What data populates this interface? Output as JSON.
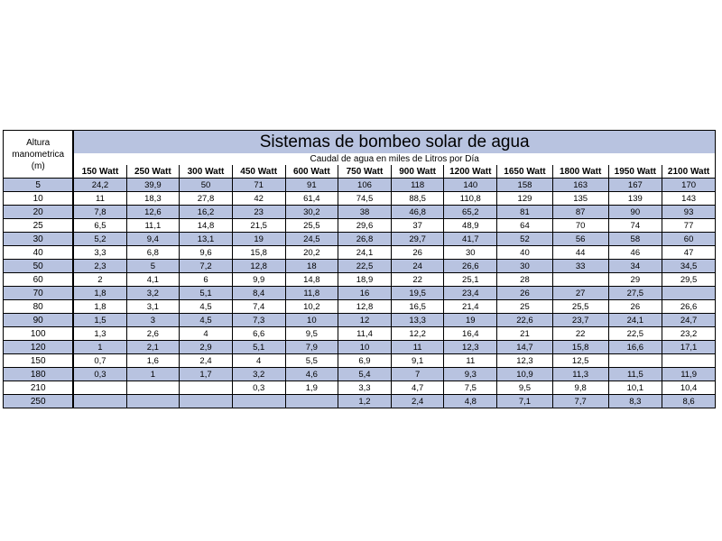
{
  "altitude_header": [
    "Altura",
    "manometrica",
    "(m)"
  ],
  "title": "Sistemas de bombeo solar de agua",
  "subtitle": "Caudal de agua en miles de Litros por Día",
  "columns": [
    "150 Watt",
    "250 Watt",
    "300 Watt",
    "450 Watt",
    "600 Watt",
    "750 Watt",
    "900 Watt",
    "1200 Watt",
    "1650 Watt",
    "1800 Watt",
    "1950 Watt",
    "2100 Watt"
  ],
  "rows": [
    {
      "altura": "5",
      "values": [
        "24,2",
        "39,9",
        "50",
        "71",
        "91",
        "106",
        "118",
        "140",
        "158",
        "163",
        "167",
        "170"
      ]
    },
    {
      "altura": "10",
      "values": [
        "11",
        "18,3",
        "27,8",
        "42",
        "61,4",
        "74,5",
        "88,5",
        "110,8",
        "129",
        "135",
        "139",
        "143"
      ]
    },
    {
      "altura": "20",
      "values": [
        "7,8",
        "12,6",
        "16,2",
        "23",
        "30,2",
        "38",
        "46,8",
        "65,2",
        "81",
        "87",
        "90",
        "93"
      ]
    },
    {
      "altura": "25",
      "values": [
        "6,5",
        "11,1",
        "14,8",
        "21,5",
        "25,5",
        "29,6",
        "37",
        "48,9",
        "64",
        "70",
        "74",
        "77"
      ]
    },
    {
      "altura": "30",
      "values": [
        "5,2",
        "9,4",
        "13,1",
        "19",
        "24,5",
        "26,8",
        "29,7",
        "41,7",
        "52",
        "56",
        "58",
        "60"
      ]
    },
    {
      "altura": "40",
      "values": [
        "3,3",
        "6,8",
        "9,6",
        "15,8",
        "20,2",
        "24,1",
        "26",
        "30",
        "40",
        "44",
        "46",
        "47"
      ]
    },
    {
      "altura": "50",
      "values": [
        "2,3",
        "5",
        "7,2",
        "12,8",
        "18",
        "22,5",
        "24",
        "26,6",
        "30",
        "33",
        "34",
        "34,5"
      ]
    },
    {
      "altura": "60",
      "values": [
        "2",
        "4,1",
        "6",
        "9,9",
        "14,8",
        "18,9",
        "22",
        "25,1",
        "28",
        "",
        "29",
        "29,5"
      ]
    },
    {
      "altura": "70",
      "values": [
        "1,8",
        "3,2",
        "5,1",
        "8,4",
        "11,8",
        "16",
        "19,5",
        "23,4",
        "26",
        "27",
        "27,5",
        ""
      ]
    },
    {
      "altura": "80",
      "values": [
        "1,8",
        "3,1",
        "4,5",
        "7,4",
        "10,2",
        "12,8",
        "16,5",
        "21,4",
        "25",
        "25,5",
        "26",
        "26,6"
      ]
    },
    {
      "altura": "90",
      "values": [
        "1,5",
        "3",
        "4,5",
        "7,3",
        "10",
        "12",
        "13,3",
        "19",
        "22,6",
        "23,7",
        "24,1",
        "24,7"
      ]
    },
    {
      "altura": "100",
      "values": [
        "1,3",
        "2,6",
        "4",
        "6,6",
        "9,5",
        "11,4",
        "12,2",
        "16,4",
        "21",
        "22",
        "22,5",
        "23,2"
      ]
    },
    {
      "altura": "120",
      "values": [
        "1",
        "2,1",
        "2,9",
        "5,1",
        "7,9",
        "10",
        "11",
        "12,3",
        "14,7",
        "15,8",
        "16,6",
        "17,1"
      ]
    },
    {
      "altura": "150",
      "values": [
        "0,7",
        "1,6",
        "2,4",
        "4",
        "5,5",
        "6,9",
        "9,1",
        "11",
        "12,3",
        "12,5",
        "",
        ""
      ]
    },
    {
      "altura": "180",
      "values": [
        "0,3",
        "1",
        "1,7",
        "3,2",
        "4,6",
        "5,4",
        "7",
        "9,3",
        "10,9",
        "11,3",
        "11,5",
        "11,9"
      ]
    },
    {
      "altura": "210",
      "values": [
        "",
        "",
        "",
        "0,3",
        "1,9",
        "3,3",
        "4,7",
        "7,5",
        "9,5",
        "9,8",
        "10,1",
        "10,4"
      ]
    },
    {
      "altura": "250",
      "values": [
        "",
        "",
        "",
        "",
        "",
        "1,2",
        "2,4",
        "4,8",
        "7,1",
        "7,7",
        "8,3",
        "8,6"
      ]
    }
  ],
  "colors": {
    "band": "#b8c3e0",
    "border": "#000000"
  }
}
